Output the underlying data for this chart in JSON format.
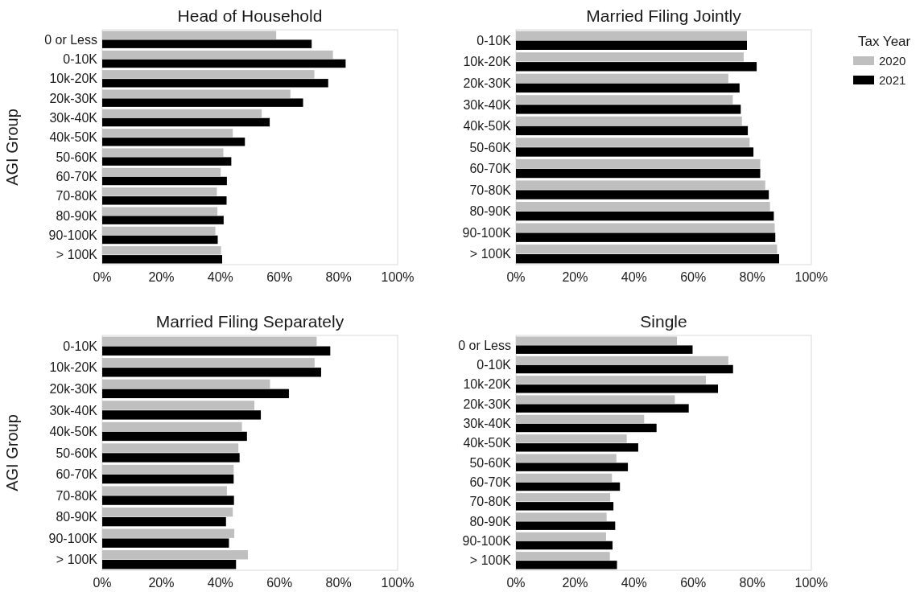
{
  "chart_data": [
    {
      "type": "bar",
      "orientation": "horizontal",
      "title": "Head of Household",
      "ylabel": "AGI Group",
      "categories": [
        "0 or Less",
        "0-10K",
        "10k-20K",
        "20k-30K",
        "30k-40K",
        "40k-50K",
        "50-60K",
        "60-70K",
        "70-80K",
        "80-90K",
        "90-100K",
        "> 100K"
      ],
      "series": [
        {
          "color": "#bfbfbf",
          "values": [
            58.9,
            78.1,
            71.8,
            63.7,
            54.0,
            44.2,
            41.0,
            40.1,
            38.8,
            39.0,
            38.3,
            40.2
          ]
        },
        {
          "color": "#000000",
          "values": [
            70.9,
            82.4,
            76.5,
            68.0,
            56.7,
            48.3,
            43.7,
            42.2,
            42.1,
            41.1,
            39.1,
            40.6
          ]
        }
      ],
      "xlim": [
        0,
        100
      ],
      "xticks": [
        {
          "value": 0,
          "label": "0%"
        },
        {
          "value": 20,
          "label": "20%"
        },
        {
          "value": 40,
          "label": "40%"
        },
        {
          "value": 60,
          "label": "60%"
        },
        {
          "value": 80,
          "label": "80%"
        },
        {
          "value": 100,
          "label": "100%"
        }
      ],
      "grid": false
    },
    {
      "type": "bar",
      "orientation": "horizontal",
      "title": "Married Filing Jointly",
      "legend_title": "Tax Year",
      "legend": "right",
      "categories": [
        "0-10K",
        "10k-20K",
        "20k-30K",
        "30k-40K",
        "40k-50K",
        "50-60K",
        "60-70K",
        "70-80K",
        "80-90K",
        "90-100K",
        "> 100K"
      ],
      "series": [
        {
          "name": "2020",
          "color": "#bfbfbf",
          "values": [
            78.2,
            77.1,
            71.9,
            73.4,
            76.5,
            79.1,
            82.7,
            84.4,
            86.0,
            87.6,
            88.4
          ]
        },
        {
          "name": "2021",
          "color": "#000000",
          "values": [
            78.2,
            81.5,
            75.7,
            76.1,
            78.5,
            80.4,
            82.7,
            85.6,
            87.3,
            87.8,
            89.1
          ]
        }
      ],
      "xlim": [
        0,
        100
      ],
      "xticks": [
        {
          "value": 0,
          "label": "0%"
        },
        {
          "value": 20,
          "label": "20%"
        },
        {
          "value": 40,
          "label": "40%"
        },
        {
          "value": 60,
          "label": "60%"
        },
        {
          "value": 80,
          "label": "80%"
        },
        {
          "value": 100,
          "label": "100%"
        }
      ],
      "grid": false
    },
    {
      "type": "bar",
      "orientation": "horizontal",
      "title": "Married Filing Separately",
      "ylabel": "AGI Group",
      "categories": [
        "0-10K",
        "10k-20K",
        "20k-30K",
        "30k-40K",
        "40k-50K",
        "50-60K",
        "60-70K",
        "70-80K",
        "80-90K",
        "90-100K",
        "> 100K"
      ],
      "series": [
        {
          "color": "#bfbfbf",
          "values": [
            72.6,
            71.9,
            56.8,
            51.5,
            47.3,
            46.1,
            44.5,
            42.2,
            44.2,
            44.7,
            49.3
          ]
        },
        {
          "color": "#000000",
          "values": [
            77.2,
            74.1,
            63.2,
            53.7,
            49.0,
            46.5,
            44.5,
            44.6,
            41.9,
            42.9,
            45.3
          ]
        }
      ],
      "xlim": [
        0,
        100
      ],
      "xticks": [
        {
          "value": 0,
          "label": "0%"
        },
        {
          "value": 20,
          "label": "20%"
        },
        {
          "value": 40,
          "label": "40%"
        },
        {
          "value": 60,
          "label": "60%"
        },
        {
          "value": 80,
          "label": "80%"
        },
        {
          "value": 100,
          "label": "100%"
        }
      ],
      "grid": false
    },
    {
      "type": "bar",
      "orientation": "horizontal",
      "title": "Single",
      "categories": [
        "0 or Less",
        "0-10K",
        "10k-20K",
        "20k-30K",
        "30k-40K",
        "40k-50K",
        "50-60K",
        "60-70K",
        "70-80K",
        "80-90K",
        "90-100K",
        "> 100K"
      ],
      "series": [
        {
          "color": "#bfbfbf",
          "values": [
            54.5,
            71.9,
            64.3,
            53.8,
            43.4,
            37.5,
            34.0,
            32.5,
            31.9,
            30.7,
            30.5,
            31.8
          ]
        },
        {
          "color": "#000000",
          "values": [
            59.8,
            73.5,
            68.4,
            58.5,
            47.6,
            41.4,
            37.9,
            35.2,
            33.0,
            33.6,
            32.7,
            34.2
          ]
        }
      ],
      "xlim": [
        0,
        100
      ],
      "xticks": [
        {
          "value": 0,
          "label": "0%"
        },
        {
          "value": 20,
          "label": "20%"
        },
        {
          "value": 40,
          "label": "40%"
        },
        {
          "value": 60,
          "label": "60%"
        },
        {
          "value": 80,
          "label": "80%"
        },
        {
          "value": 100,
          "label": "100%"
        }
      ],
      "grid": false
    }
  ]
}
